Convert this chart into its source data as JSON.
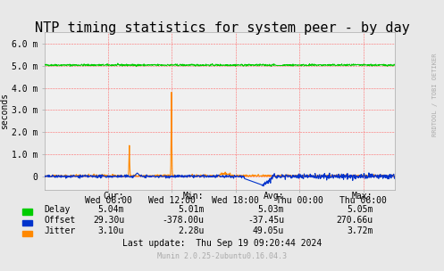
{
  "title": "NTP timing statistics for system peer - by day",
  "ylabel": "seconds",
  "bg_color": "#e8e8e8",
  "plot_bg_color": "#f0f0f0",
  "grid_color": "#ff9999",
  "x_tick_labels": [
    "Wed 06:00",
    "Wed 12:00",
    "Wed 18:00",
    "Thu 00:00",
    "Thu 06:00"
  ],
  "y_tick_labels": [
    "6.0 m",
    "5.0 m",
    "4.0 m",
    "3.0 m",
    "2.0 m",
    "1.0 m",
    "0"
  ],
  "ylim": [
    -0.0006,
    0.0065
  ],
  "delay_color": "#00cc00",
  "offset_color": "#0033cc",
  "jitter_color": "#ff8800",
  "legend_items": [
    "Delay",
    "Offset",
    "Jitter"
  ],
  "legend_colors": [
    "#00cc00",
    "#0033cc",
    "#ff8800"
  ],
  "stats_header": [
    "Cur:",
    "Min:",
    "Avg:",
    "Max:"
  ],
  "stats_delay": [
    "5.04m",
    "5.01m",
    "5.03m",
    "5.05m"
  ],
  "stats_offset": [
    "29.30u",
    "-378.00u",
    "-37.45u",
    "270.66u"
  ],
  "stats_jitter": [
    "3.10u",
    "2.28u",
    "49.05u",
    "3.72m"
  ],
  "last_update": "Last update:  Thu Sep 19 09:20:44 2024",
  "munin_version": "Munin 2.0.25-2ubuntu0.16.04.3",
  "rrdtool_label": "RRDTOOL / TOBI OETIKER",
  "title_fontsize": 11,
  "axis_fontsize": 7,
  "label_fontsize": 7,
  "stats_fontsize": 7
}
